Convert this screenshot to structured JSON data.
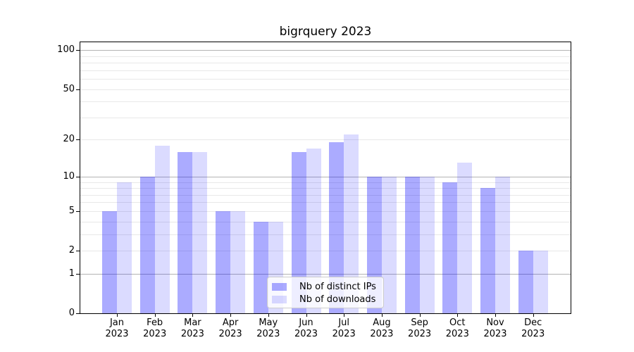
{
  "chart_data": {
    "type": "bar",
    "title": "bigrquery 2023",
    "categories": [
      "Jan",
      "Feb",
      "Mar",
      "Apr",
      "May",
      "Jun",
      "Jul",
      "Aug",
      "Sep",
      "Oct",
      "Nov",
      "Dec"
    ],
    "year_label": "2023",
    "series": [
      {
        "name": "Nb of distinct IPs",
        "color": "rgba(0,0,255,0.33)",
        "values": [
          5,
          10,
          16,
          5,
          4,
          16,
          19,
          10,
          10,
          9,
          8,
          2
        ]
      },
      {
        "name": "Nb of downloads",
        "color": "rgba(0,0,255,0.14)",
        "values": [
          9,
          18,
          16,
          5,
          4,
          17,
          22,
          10,
          10,
          13,
          10,
          2
        ]
      }
    ],
    "xlabel": "",
    "ylabel": "",
    "yaxis": {
      "scale": "log1p",
      "labeled_ticks": [
        0,
        1,
        2,
        5,
        10,
        20,
        50,
        100
      ],
      "major_gridlines": [
        1,
        10,
        100
      ],
      "minor_gridlines": [
        2,
        3,
        4,
        5,
        6,
        7,
        8,
        9,
        20,
        30,
        40,
        50,
        60,
        70,
        80,
        90
      ],
      "ymin": 0,
      "ymax": 115
    },
    "legend": {
      "entries": [
        "Nb of distinct IPs",
        "Nb of downloads"
      ],
      "position": "lower center"
    },
    "grid": true
  },
  "colors": {
    "grid_major": "#b4b4b4",
    "grid_minor": "#e8e8e8",
    "axis": "#000000",
    "background": "#ffffff",
    "legend_border": "#cccccc"
  }
}
